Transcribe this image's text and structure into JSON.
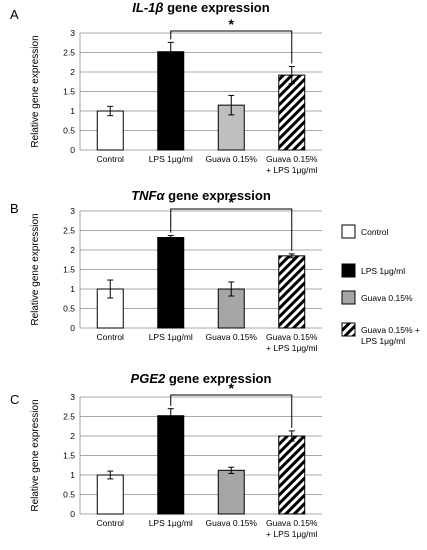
{
  "legend": {
    "items": [
      {
        "label_lines": [
          "Control"
        ],
        "fill": "#ffffff",
        "pattern": "none"
      },
      {
        "label_lines": [
          "LPS 1μg/ml"
        ],
        "fill": "#000000",
        "pattern": "none"
      },
      {
        "label_lines": [
          "Guava 0.15%"
        ],
        "fill": "#a6a6a6",
        "pattern": "none"
      },
      {
        "label_lines": [
          "Guava 0.15% +",
          "LPS 1μg/ml"
        ],
        "fill": "#ffffff",
        "pattern": "hatch"
      }
    ]
  },
  "chart_data": [
    {
      "panel_letter": "A",
      "type": "bar",
      "title_italic": "IL-1β",
      "title_rest": " gene expression",
      "ylabel": "Relative gene expression",
      "ylim": [
        0,
        3
      ],
      "yticks": [
        "0",
        "0.5",
        "1",
        "1.5",
        "2",
        "2.5",
        "3"
      ],
      "grid": true,
      "categories": [
        [
          "Control"
        ],
        [
          "LPS 1μg/ml"
        ],
        [
          "Guava 0.15%"
        ],
        [
          "Guava 0.15%",
          "+ LPS 1μg/ml"
        ]
      ],
      "values": [
        1.0,
        2.52,
        1.15,
        1.92
      ],
      "errors": [
        0.12,
        0.24,
        0.25,
        0.22
      ],
      "fills": [
        "#ffffff",
        "#000000",
        "#bfbfbf",
        "#ffffff"
      ],
      "patterns": [
        "none",
        "none",
        "none",
        "hatch"
      ],
      "significance": {
        "from": 1,
        "to": 3,
        "label": "*"
      }
    },
    {
      "panel_letter": "B",
      "type": "bar",
      "title_italic": "TNFα",
      "title_rest": " gene expression",
      "ylabel": "Relative gene expression",
      "ylim": [
        0,
        3
      ],
      "yticks": [
        "0",
        "0.5",
        "1",
        "1.5",
        "2",
        "2.5",
        "3"
      ],
      "grid": true,
      "categories": [
        [
          "Control"
        ],
        [
          "LPS 1μg/ml"
        ],
        [
          "Guava 0.15%"
        ],
        [
          "Guava 0.15%",
          "+ LPS 1μg/ml"
        ]
      ],
      "values": [
        1.0,
        2.32,
        1.0,
        1.85
      ],
      "errors": [
        0.23,
        0.05,
        0.18,
        0.05
      ],
      "fills": [
        "#ffffff",
        "#000000",
        "#a6a6a6",
        "#ffffff"
      ],
      "patterns": [
        "none",
        "none",
        "none",
        "hatch"
      ],
      "significance": {
        "from": 1,
        "to": 3,
        "label": "*"
      }
    },
    {
      "panel_letter": "C",
      "type": "bar",
      "title_italic": "PGE2",
      "title_rest": " gene expression",
      "ylabel": "Relative gene expression",
      "ylim": [
        0,
        3
      ],
      "yticks": [
        "0",
        "0.5",
        "1",
        "1.5",
        "2",
        "2.5",
        "3"
      ],
      "grid": true,
      "categories": [
        [
          "Control"
        ],
        [
          "LPS 1μg/ml"
        ],
        [
          "Guava 0.15%"
        ],
        [
          "Guava 0.15%",
          "+ LPS 1μg/ml"
        ]
      ],
      "values": [
        1.0,
        2.52,
        1.12,
        2.0
      ],
      "errors": [
        0.1,
        0.18,
        0.08,
        0.13
      ],
      "fills": [
        "#ffffff",
        "#000000",
        "#a6a6a6",
        "#ffffff"
      ],
      "patterns": [
        "none",
        "none",
        "none",
        "hatch"
      ],
      "significance": {
        "from": 1,
        "to": 3,
        "label": "*"
      }
    }
  ]
}
